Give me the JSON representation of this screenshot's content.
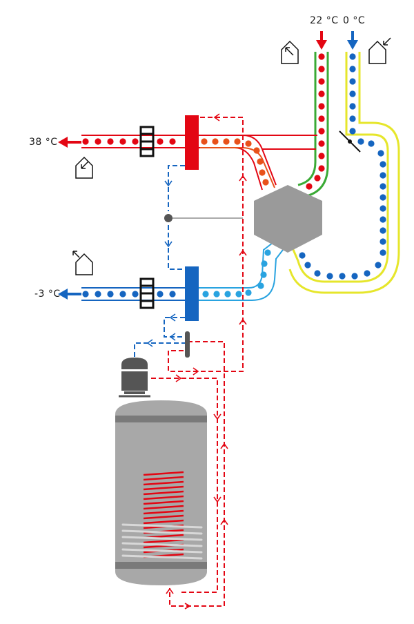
{
  "labels": {
    "supply_temp": "22 °C",
    "outdoor_temp": "0 °C",
    "supply_out_temp": "38 °C",
    "exhaust_temp": "-3 °C"
  },
  "colors": {
    "hot_red": "#e30613",
    "warm_orange": "#e8511a",
    "cold_blue": "#1565c0",
    "cool_light_blue": "#29a3e0",
    "green_line": "#3aaa35",
    "yellow_line": "#e6e62b",
    "exchanger_gray": "#9a9a9a",
    "tank_gray": "#a8a8a8",
    "dark_gray": "#555555"
  },
  "icons": [
    "house-supply-icon",
    "house-outdoor-icon",
    "house-exhaust-icon",
    "house-intake-icon",
    "compressor-icon",
    "hot-water-tank-icon"
  ]
}
